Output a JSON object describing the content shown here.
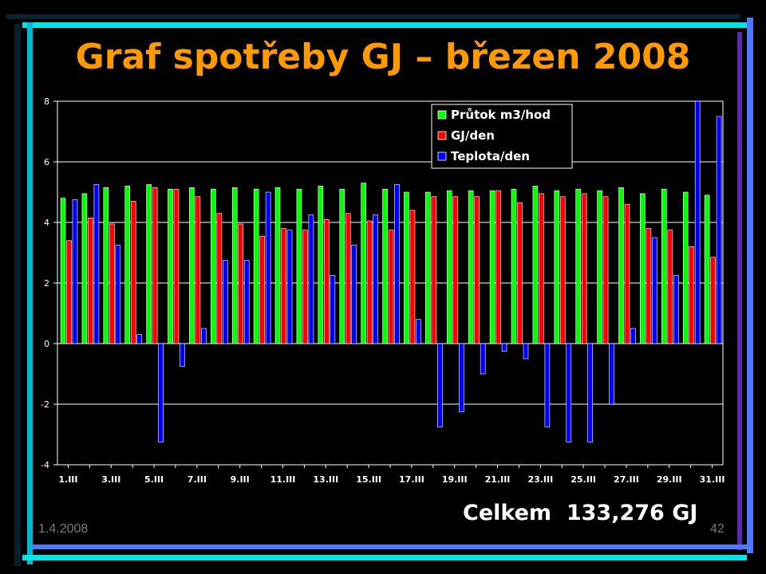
{
  "slide": {
    "title": "Graf spotřeby GJ – březen 2008",
    "total": "Celkem  133,276 GJ",
    "date": "1.4.2008",
    "page_number": "42",
    "colors": {
      "title": "#ff9900",
      "background": "#000000",
      "frame_cyan": "#00e5e5",
      "frame_blue": "#4d78ff",
      "frame_violet": "#8a3fff"
    }
  },
  "chart_data": {
    "type": "bar",
    "categories": [
      "1.III",
      "2.III",
      "3.III",
      "4.III",
      "5.III",
      "6.III",
      "7.III",
      "8.III",
      "9.III",
      "10.III",
      "11.III",
      "12.III",
      "13.III",
      "14.III",
      "15.III",
      "16.III",
      "17.III",
      "18.III",
      "19.III",
      "20.III",
      "21.III",
      "22.III",
      "23.III",
      "24.III",
      "25.III",
      "26.III",
      "27.III",
      "28.III",
      "29.III",
      "30.III",
      "31.III"
    ],
    "tick_labels": [
      "1.III",
      "3.III",
      "5.III",
      "7.III",
      "9.III",
      "11.III",
      "13.III",
      "15.III",
      "17.III",
      "19.III",
      "21.III",
      "23.III",
      "25.III",
      "27.III",
      "29.III",
      "31.III"
    ],
    "series": [
      {
        "name": "Průtok m3/hod",
        "color": "#00ff00",
        "values": [
          4.8,
          4.95,
          5.15,
          5.2,
          5.25,
          5.1,
          5.15,
          5.1,
          5.15,
          5.1,
          5.15,
          5.1,
          5.2,
          5.1,
          5.3,
          5.1,
          5.0,
          5.0,
          5.05,
          5.05,
          5.05,
          5.1,
          5.2,
          5.05,
          5.1,
          5.05,
          5.15,
          4.95,
          5.1,
          5.0,
          4.9
        ]
      },
      {
        "name": "GJ/den",
        "color": "#ff0000",
        "values": [
          3.4,
          4.15,
          3.95,
          4.7,
          5.15,
          5.1,
          4.85,
          4.3,
          3.95,
          3.55,
          3.8,
          3.75,
          4.1,
          4.3,
          4.05,
          3.75,
          4.4,
          4.85,
          4.85,
          4.85,
          5.05,
          4.65,
          4.95,
          4.85,
          4.95,
          4.85,
          4.6,
          3.8,
          3.75,
          3.2,
          2.85
        ]
      },
      {
        "name": "Teplota/den",
        "color": "#0000ff",
        "values": [
          4.75,
          5.25,
          3.25,
          0.3,
          -3.25,
          -0.75,
          0.5,
          2.75,
          2.75,
          5.0,
          3.75,
          4.25,
          2.25,
          3.25,
          4.25,
          5.25,
          0.8,
          -2.75,
          -2.25,
          -1.0,
          -0.25,
          -0.5,
          -2.75,
          -3.25,
          -3.25,
          -2.0,
          0.5,
          3.5,
          2.25,
          8.0,
          7.5
        ]
      }
    ],
    "ylim": [
      -4,
      8
    ],
    "yticks": [
      -4,
      -2,
      0,
      2,
      4,
      6,
      8
    ],
    "grid": true,
    "legend_position": "top-right",
    "title": "",
    "xlabel": "",
    "ylabel": ""
  }
}
